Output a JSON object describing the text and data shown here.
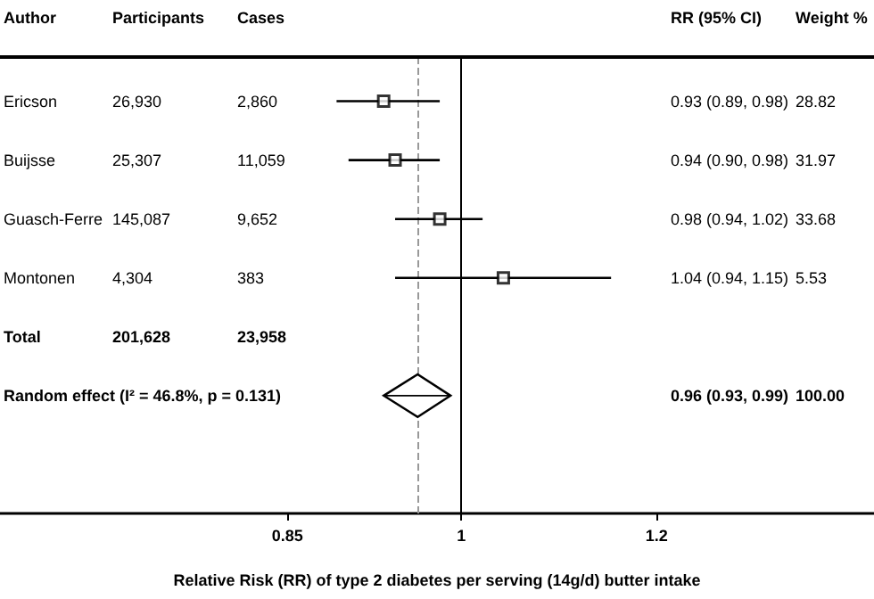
{
  "chart_data": {
    "type": "scatter",
    "orientation": "horizontal",
    "xlabel": "Relative Risk (RR) of type 2 diabetes per serving (14g/d) butter intake",
    "categories": [
      "Ericson",
      "Buijsse",
      "Guasch-Ferre",
      "Montonen",
      "Total",
      "Random effect (I² = 46.8%, p = 0.131)"
    ],
    "series": [
      {
        "color": "#000000",
        "marker": "square",
        "values": [
          0.93,
          0.94,
          0.98,
          1.04,
          null,
          null
        ],
        "errors": [
          [
            0.89,
            0.98
          ],
          [
            0.9,
            0.98
          ],
          [
            0.94,
            1.02
          ],
          [
            0.94,
            1.15
          ],
          null,
          null
        ]
      },
      {
        "color": "#000000",
        "marker": "diamond",
        "values": [
          null,
          null,
          null,
          null,
          null,
          0.96
        ],
        "errors": [
          null,
          null,
          null,
          null,
          null,
          [
            0.93,
            0.99
          ]
        ]
      }
    ],
    "value_labels": [
      "0.93 (0.89, 0.98)",
      "0.94 (0.90, 0.98)",
      "0.98 (0.94, 1.02)",
      "1.04 (0.94, 1.15)",
      null,
      "0.96 (0.93, 0.99)"
    ],
    "annotations": [
      "Author",
      "Participants",
      "Cases",
      "RR (95% CI)",
      "Weight %",
      "26,930",
      "2,860",
      "28.82",
      "25,307",
      "11,059",
      "31.97",
      "145,087",
      "9,652",
      "33.68",
      "4,304",
      "383",
      "5.53",
      "201,628",
      "23,958",
      "100.00"
    ],
    "xlim": [
      0.65,
      1.47
    ],
    "xticks": [
      0.85,
      1,
      1.2
    ],
    "log": "x",
    "ref_lines": [
      {
        "axis": "x",
        "value": 1,
        "color": "#000000",
        "line_style": "solid"
      },
      {
        "axis": "x",
        "value": 0.96,
        "color": "#999999",
        "line_style": "dashed"
      }
    ],
    "grid": false
  }
}
